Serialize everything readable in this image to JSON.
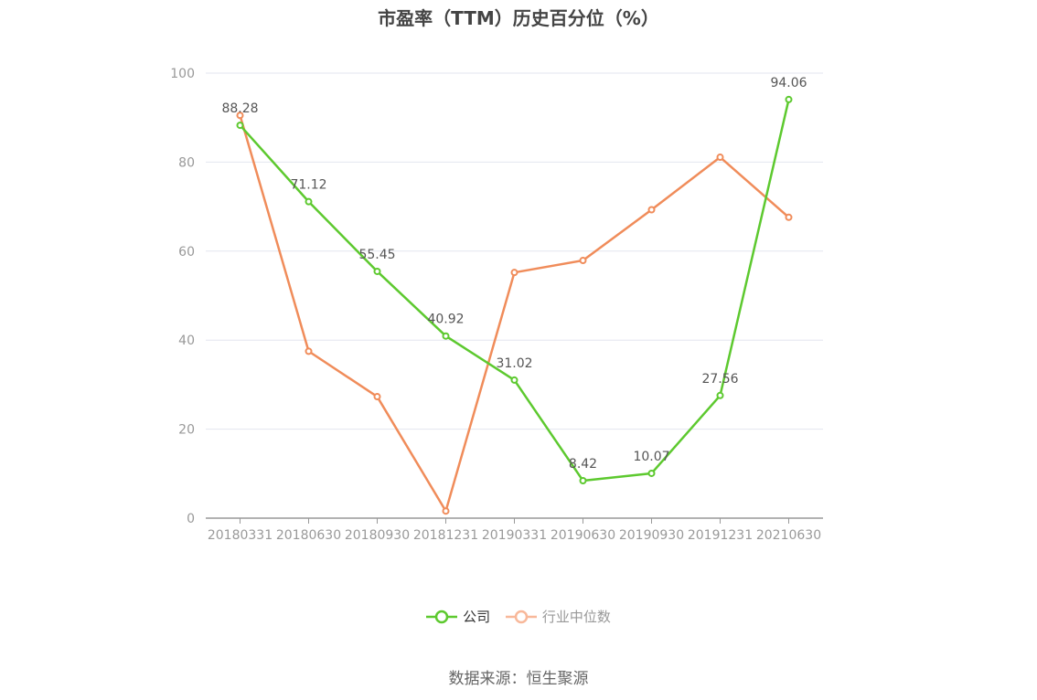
{
  "chart_data": {
    "type": "line",
    "title": "市盈率（TTM）历史百分位（%）",
    "categories": [
      "20180331",
      "20180630",
      "20180930",
      "20181231",
      "20190331",
      "20190630",
      "20190930",
      "20191231",
      "20210630"
    ],
    "ylim": [
      0,
      100
    ],
    "yticks": [
      0,
      20,
      40,
      60,
      80,
      100
    ],
    "grid": true,
    "legend_position": "bottom",
    "series": [
      {
        "name": "公司",
        "color": "#5dc92f",
        "values": [
          88.28,
          71.12,
          55.45,
          40.92,
          31.02,
          8.42,
          10.07,
          27.56,
          94.06
        ],
        "labels": [
          "88.28",
          "71.12",
          "55.45",
          "40.92",
          "31.02",
          "8.42",
          "10.07",
          "27.56",
          "94.06"
        ]
      },
      {
        "name": "行业中位数",
        "color": "#f08c5a",
        "values": [
          90.5,
          37.5,
          27.3,
          1.6,
          55.2,
          57.9,
          69.3,
          81.1,
          67.6
        ]
      }
    ]
  },
  "legend": {
    "company": "公司",
    "industry": "行业中位数"
  },
  "source": "数据来源：恒生聚源"
}
